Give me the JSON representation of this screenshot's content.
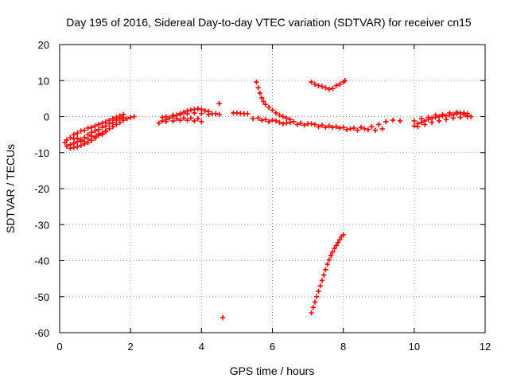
{
  "chart_data": {
    "type": "scatter",
    "title": "Day 195 of 2016, Sidereal Day-to-day VTEC variation (SDTVAR) for receiver cn15",
    "xlabel": "GPS time / hours",
    "ylabel": "SDTVAR / TECUs",
    "xlim": [
      0,
      12
    ],
    "ylim": [
      -60,
      20
    ],
    "xticks": [
      0,
      2,
      4,
      6,
      8,
      10,
      12
    ],
    "yticks": [
      -60,
      -50,
      -40,
      -30,
      -20,
      -10,
      0,
      10,
      20
    ],
    "grid": true,
    "marker": "+",
    "series": [
      {
        "name": "SDTVAR",
        "color": "#ff0000",
        "points": [
          [
            0.15,
            -7.2
          ],
          [
            0.2,
            -6.5
          ],
          [
            0.3,
            -5.8
          ],
          [
            0.4,
            -5.0
          ],
          [
            0.5,
            -4.6
          ],
          [
            0.6,
            -4.0
          ],
          [
            0.7,
            -3.8
          ],
          [
            0.8,
            -3.2
          ],
          [
            0.9,
            -3.0
          ],
          [
            1.0,
            -2.6
          ],
          [
            1.1,
            -2.2
          ],
          [
            1.2,
            -1.8
          ],
          [
            1.3,
            -1.5
          ],
          [
            1.4,
            -1.0
          ],
          [
            1.5,
            -0.6
          ],
          [
            1.6,
            -0.2
          ],
          [
            1.7,
            0.2
          ],
          [
            1.8,
            0.6
          ],
          [
            0.2,
            -8.2
          ],
          [
            0.3,
            -7.8
          ],
          [
            0.4,
            -7.4
          ],
          [
            0.5,
            -7.0
          ],
          [
            0.6,
            -6.4
          ],
          [
            0.7,
            -5.8
          ],
          [
            0.8,
            -5.0
          ],
          [
            0.9,
            -4.4
          ],
          [
            1.0,
            -4.0
          ],
          [
            1.1,
            -3.6
          ],
          [
            1.2,
            -3.0
          ],
          [
            1.3,
            -2.6
          ],
          [
            1.4,
            -2.0
          ],
          [
            1.5,
            -1.6
          ],
          [
            1.6,
            -1.0
          ],
          [
            1.7,
            -0.6
          ],
          [
            1.8,
            -0.2
          ],
          [
            0.3,
            -8.8
          ],
          [
            0.4,
            -8.6
          ],
          [
            0.5,
            -8.4
          ],
          [
            0.6,
            -8.0
          ],
          [
            0.7,
            -7.6
          ],
          [
            0.8,
            -7.2
          ],
          [
            0.9,
            -6.6
          ],
          [
            1.0,
            -6.0
          ],
          [
            1.1,
            -5.2
          ],
          [
            1.2,
            -4.6
          ],
          [
            1.3,
            -4.0
          ],
          [
            1.4,
            -3.4
          ],
          [
            1.5,
            -2.8
          ],
          [
            1.6,
            -2.2
          ],
          [
            1.7,
            -1.6
          ],
          [
            1.8,
            -1.0
          ],
          [
            1.9,
            -0.6
          ],
          [
            2.0,
            -0.2
          ],
          [
            2.1,
            0.0
          ],
          [
            0.6,
            -6.8
          ],
          [
            0.8,
            -6.2
          ],
          [
            1.0,
            -5.6
          ],
          [
            1.2,
            -5.0
          ],
          [
            0.9,
            -5.4
          ],
          [
            1.1,
            -4.8
          ],
          [
            1.3,
            -4.2
          ],
          [
            0.5,
            -6.0
          ],
          [
            0.4,
            -6.2
          ],
          [
            0.7,
            -7.0
          ],
          [
            2.8,
            -1.8
          ],
          [
            2.9,
            -1.2
          ],
          [
            3.0,
            -0.8
          ],
          [
            3.1,
            -0.4
          ],
          [
            3.2,
            0.0
          ],
          [
            3.3,
            0.4
          ],
          [
            3.4,
            0.8
          ],
          [
            3.5,
            1.2
          ],
          [
            3.6,
            1.6
          ],
          [
            3.7,
            1.8
          ],
          [
            3.8,
            2.0
          ],
          [
            3.9,
            2.2
          ],
          [
            4.0,
            2.0
          ],
          [
            4.1,
            1.6
          ],
          [
            4.2,
            1.4
          ],
          [
            2.9,
            -0.2
          ],
          [
            3.0,
            0.0
          ],
          [
            3.2,
            0.4
          ],
          [
            3.4,
            0.6
          ],
          [
            3.6,
            0.8
          ],
          [
            3.8,
            1.0
          ],
          [
            4.0,
            0.8
          ],
          [
            4.2,
            0.6
          ],
          [
            4.4,
            0.8
          ],
          [
            3.0,
            -1.4
          ],
          [
            3.2,
            -1.2
          ],
          [
            3.4,
            -1.0
          ],
          [
            3.6,
            -1.0
          ],
          [
            3.8,
            -1.2
          ],
          [
            4.0,
            -1.4
          ],
          [
            3.3,
            -0.6
          ],
          [
            3.5,
            -0.4
          ],
          [
            3.7,
            -0.4
          ],
          [
            3.9,
            -0.6
          ],
          [
            4.5,
            3.6
          ],
          [
            4.5,
            0.6
          ],
          [
            4.3,
            0.8
          ],
          [
            4.9,
            1.0
          ],
          [
            5.0,
            1.0
          ],
          [
            5.1,
            0.9
          ],
          [
            5.2,
            0.8
          ],
          [
            5.3,
            0.8
          ],
          [
            5.45,
            -0.6
          ],
          [
            5.6,
            -0.4
          ],
          [
            5.8,
            -0.8
          ],
          [
            6.0,
            -1.0
          ],
          [
            6.2,
            -1.6
          ],
          [
            6.4,
            -1.8
          ],
          [
            6.6,
            -1.4
          ],
          [
            6.8,
            -1.8
          ],
          [
            7.0,
            -2.0
          ],
          [
            7.2,
            -2.2
          ],
          [
            7.4,
            -2.4
          ],
          [
            7.6,
            -2.6
          ],
          [
            7.8,
            -2.8
          ],
          [
            8.0,
            -3.0
          ],
          [
            8.2,
            -3.4
          ],
          [
            8.4,
            -3.8
          ],
          [
            8.6,
            -3.4
          ],
          [
            8.8,
            -2.8
          ],
          [
            9.0,
            -2.2
          ],
          [
            9.2,
            -1.4
          ],
          [
            9.4,
            -1.0
          ],
          [
            9.6,
            -1.2
          ],
          [
            5.7,
            -1.0
          ],
          [
            5.9,
            -1.4
          ],
          [
            6.1,
            -1.2
          ],
          [
            6.3,
            -2.0
          ],
          [
            6.5,
            -1.6
          ],
          [
            6.7,
            -2.2
          ],
          [
            6.9,
            -2.4
          ],
          [
            7.1,
            -2.0
          ],
          [
            7.3,
            -2.8
          ],
          [
            7.5,
            -3.0
          ],
          [
            7.7,
            -3.0
          ],
          [
            7.9,
            -3.2
          ],
          [
            8.1,
            -3.6
          ],
          [
            8.3,
            -3.2
          ],
          [
            8.5,
            -3.0
          ],
          [
            8.7,
            -3.6
          ],
          [
            8.9,
            -3.8
          ],
          [
            9.1,
            -3.4
          ],
          [
            5.55,
            9.6
          ],
          [
            5.6,
            8.0
          ],
          [
            5.65,
            6.5
          ],
          [
            5.7,
            5.2
          ],
          [
            5.75,
            4.2
          ],
          [
            5.8,
            3.4
          ],
          [
            5.9,
            2.6
          ],
          [
            6.0,
            1.8
          ],
          [
            6.1,
            1.0
          ],
          [
            6.2,
            0.4
          ],
          [
            6.3,
            0.0
          ],
          [
            6.4,
            -0.4
          ],
          [
            6.5,
            -0.8
          ],
          [
            7.1,
            9.6
          ],
          [
            7.2,
            9.0
          ],
          [
            7.3,
            8.6
          ],
          [
            7.4,
            8.4
          ],
          [
            7.5,
            8.0
          ],
          [
            7.6,
            7.6
          ],
          [
            7.7,
            7.8
          ],
          [
            7.8,
            8.6
          ],
          [
            7.9,
            9.0
          ],
          [
            8.0,
            9.6
          ],
          [
            8.05,
            10.0
          ],
          [
            7.1,
            -54.5
          ],
          [
            7.15,
            -53.0
          ],
          [
            7.2,
            -51.5
          ],
          [
            7.25,
            -50.0
          ],
          [
            7.3,
            -48.5
          ],
          [
            7.35,
            -47.0
          ],
          [
            7.4,
            -45.5
          ],
          [
            7.45,
            -44.0
          ],
          [
            7.5,
            -42.5
          ],
          [
            7.55,
            -41.0
          ],
          [
            7.6,
            -39.8
          ],
          [
            7.65,
            -38.6
          ],
          [
            7.7,
            -37.6
          ],
          [
            7.75,
            -36.6
          ],
          [
            7.8,
            -35.8
          ],
          [
            7.85,
            -35.0
          ],
          [
            7.9,
            -34.2
          ],
          [
            7.95,
            -33.4
          ],
          [
            8.0,
            -32.8
          ],
          [
            4.6,
            -55.8
          ],
          [
            10.0,
            -2.6
          ],
          [
            10.1,
            -2.0
          ],
          [
            10.2,
            -1.6
          ],
          [
            10.3,
            -1.2
          ],
          [
            10.4,
            -0.8
          ],
          [
            10.5,
            -0.4
          ],
          [
            10.6,
            -0.2
          ],
          [
            10.7,
            0.0
          ],
          [
            10.8,
            0.2
          ],
          [
            10.9,
            0.2
          ],
          [
            11.0,
            0.4
          ],
          [
            11.1,
            0.6
          ],
          [
            11.2,
            0.8
          ],
          [
            11.3,
            1.0
          ],
          [
            11.4,
            1.0
          ],
          [
            11.5,
            0.8
          ],
          [
            10.0,
            -1.2
          ],
          [
            10.2,
            -0.6
          ],
          [
            10.4,
            -0.2
          ],
          [
            10.6,
            0.4
          ],
          [
            10.8,
            0.6
          ],
          [
            11.0,
            1.0
          ],
          [
            11.2,
            1.2
          ],
          [
            11.4,
            0.6
          ],
          [
            11.5,
            0.2
          ],
          [
            10.1,
            -2.8
          ],
          [
            10.3,
            -2.2
          ],
          [
            10.5,
            -1.6
          ],
          [
            10.7,
            -1.2
          ],
          [
            10.9,
            -0.8
          ],
          [
            11.1,
            -0.4
          ],
          [
            11.3,
            -0.2
          ],
          [
            11.5,
            0.0
          ],
          [
            11.6,
            0.0
          ]
        ]
      }
    ]
  }
}
